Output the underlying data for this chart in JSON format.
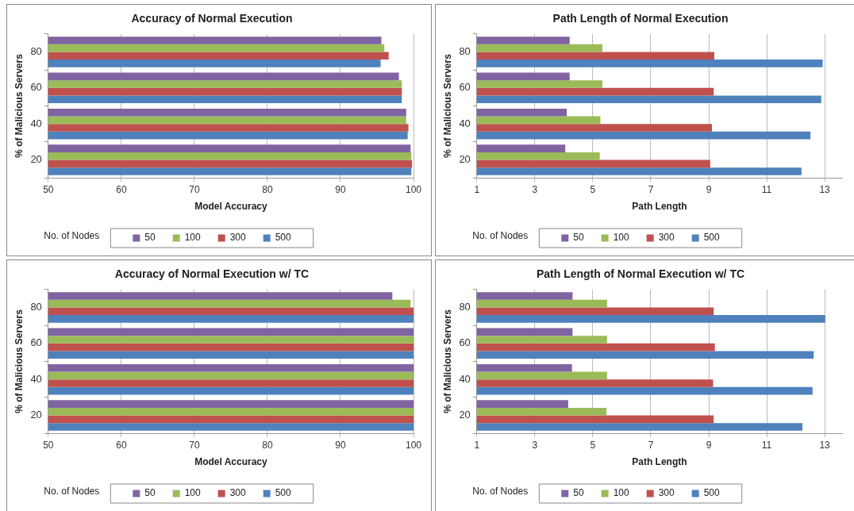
{
  "chart_data": [
    {
      "type": "bar",
      "orientation": "horizontal",
      "title": "Accuracy of Normal Execution",
      "xlabel": "Model Accuracy",
      "ylabel": "% of Malicious Servers",
      "legend_title": "No. of Nodes",
      "categories": [
        "80",
        "60",
        "40",
        "20"
      ],
      "xlim": [
        50,
        100
      ],
      "xticks": [
        50,
        60,
        70,
        80,
        90,
        100
      ],
      "grid": "x",
      "legend": "bottom",
      "series": [
        {
          "name": "50",
          "color": "#8064a2",
          "values": [
            95.6,
            98.0,
            99.0,
            99.6
          ]
        },
        {
          "name": "100",
          "color": "#9bbb59",
          "values": [
            96.0,
            98.4,
            99.0,
            99.7
          ]
        },
        {
          "name": "300",
          "color": "#c0504d",
          "values": [
            96.6,
            98.4,
            99.3,
            99.8
          ]
        },
        {
          "name": "500",
          "color": "#4f81bd",
          "values": [
            95.5,
            98.4,
            99.2,
            99.7
          ]
        }
      ]
    },
    {
      "type": "bar",
      "orientation": "horizontal",
      "title": "Path Length of Normal Execution",
      "xlabel": "Path Length",
      "ylabel": "% of Malicious Servers",
      "legend_title": "No. of Nodes",
      "categories": [
        "80",
        "60",
        "40",
        "20"
      ],
      "xlim": [
        1,
        13.6
      ],
      "xticks": [
        1,
        3,
        5,
        7,
        9,
        11,
        13
      ],
      "grid": "x",
      "legend": "bottom",
      "series": [
        {
          "name": "50",
          "color": "#8064a2",
          "values": [
            4.2,
            4.2,
            4.1,
            4.05
          ]
        },
        {
          "name": "100",
          "color": "#9bbb59",
          "values": [
            5.33,
            5.33,
            5.26,
            5.24
          ]
        },
        {
          "name": "300",
          "color": "#c0504d",
          "values": [
            9.19,
            9.17,
            9.11,
            9.05
          ]
        },
        {
          "name": "500",
          "color": "#4f81bd",
          "values": [
            12.93,
            12.88,
            12.51,
            12.2
          ]
        }
      ]
    },
    {
      "type": "bar",
      "orientation": "horizontal",
      "title": "Accuracy of Normal Execution w/ TC",
      "xlabel": "Model Accuracy",
      "ylabel": "% of Malicious Servers",
      "legend_title": "No. of Nodes",
      "categories": [
        "80",
        "60",
        "40",
        "20"
      ],
      "xlim": [
        50,
        100
      ],
      "xticks": [
        50,
        60,
        70,
        80,
        90,
        100
      ],
      "grid": "x",
      "legend": "bottom",
      "series": [
        {
          "name": "50",
          "color": "#8064a2",
          "values": [
            97.1,
            100,
            100,
            100
          ]
        },
        {
          "name": "100",
          "color": "#9bbb59",
          "values": [
            99.6,
            100,
            100,
            100
          ]
        },
        {
          "name": "300",
          "color": "#c0504d",
          "values": [
            100,
            100,
            100,
            100
          ]
        },
        {
          "name": "500",
          "color": "#4f81bd",
          "values": [
            100,
            100,
            100,
            100
          ]
        }
      ]
    },
    {
      "type": "bar",
      "orientation": "horizontal",
      "title": "Path Length of Normal Execution w/ TC",
      "xlabel": "Path Length",
      "ylabel": "% of Malicious Servers",
      "legend_title": "No. of Nodes",
      "categories": [
        "80",
        "60",
        "40",
        "20"
      ],
      "xlim": [
        1,
        13.6
      ],
      "xticks": [
        1,
        3,
        5,
        7,
        9,
        11,
        13
      ],
      "grid": "x",
      "legend": "bottom",
      "series": [
        {
          "name": "50",
          "color": "#8064a2",
          "values": [
            4.3,
            4.3,
            4.28,
            4.15
          ]
        },
        {
          "name": "100",
          "color": "#9bbb59",
          "values": [
            5.49,
            5.49,
            5.49,
            5.47
          ]
        },
        {
          "name": "300",
          "color": "#c0504d",
          "values": [
            9.17,
            9.21,
            9.15,
            9.17
          ]
        },
        {
          "name": "500",
          "color": "#4f81bd",
          "values": [
            13.02,
            12.62,
            12.58,
            12.23
          ]
        }
      ]
    }
  ]
}
